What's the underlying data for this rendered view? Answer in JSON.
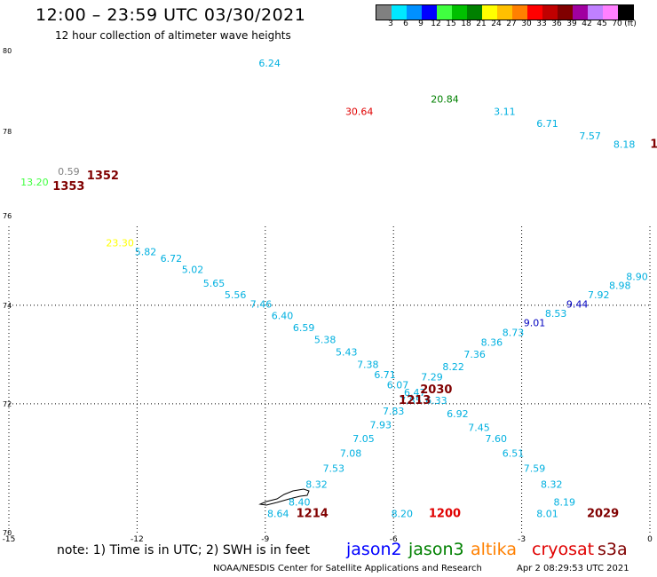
{
  "header": {
    "title": "12:00 – 23:59 UTC 03/30/2021",
    "subtitle": "12 hour collection of altimeter wave heights"
  },
  "colorbar": {
    "colors": [
      "#808080",
      "#00e8ff",
      "#0090ff",
      "#0000ff",
      "#40ff40",
      "#00c000",
      "#008000",
      "#ffff00",
      "#ffc000",
      "#ff8000",
      "#ff0000",
      "#c00000",
      "#800000",
      "#a000a0",
      "#c080ff",
      "#ff80ff",
      "#000000"
    ],
    "labels": [
      "3",
      "6",
      "9",
      "12",
      "15",
      "18",
      "21",
      "24",
      "27",
      "30",
      "33",
      "36",
      "39",
      "42",
      "45",
      "70",
      "(ft)"
    ]
  },
  "chart_data": {
    "type": "scatter",
    "xlim": [
      -15,
      0
    ],
    "ylim": [
      70,
      80
    ],
    "grid": true,
    "x_ticks": [
      "-15",
      "-12",
      "-9",
      "-6",
      "-3",
      "0"
    ],
    "y_ticks": [
      "70",
      "72",
      "74",
      "76",
      "78",
      "80"
    ],
    "points": [
      {
        "lon": -8.9,
        "lat": 79.6,
        "text": "6.24",
        "color": "#00b0e0"
      },
      {
        "lon": -4.8,
        "lat": 78.7,
        "text": "20.84",
        "color": "#008000"
      },
      {
        "lon": -6.8,
        "lat": 78.4,
        "text": "30.64",
        "color": "#e00000"
      },
      {
        "lon": -3.4,
        "lat": 78.4,
        "text": "3.11",
        "color": "#00b0e0"
      },
      {
        "lon": -2.4,
        "lat": 78.1,
        "text": "6.71",
        "color": "#00b0e0"
      },
      {
        "lon": -1.4,
        "lat": 77.8,
        "text": "7.57",
        "color": "#00b0e0"
      },
      {
        "lon": -0.6,
        "lat": 77.6,
        "text": "8.18",
        "color": "#00b0e0"
      },
      {
        "lon": -14.4,
        "lat": 76.7,
        "text": "13.20",
        "color": "#40ff40"
      },
      {
        "lon": -13.6,
        "lat": 76.95,
        "text": "0.59",
        "color": "#808080"
      },
      {
        "lon": -12.4,
        "lat": 75.3,
        "text": "23.30",
        "color": "#ffff00"
      },
      {
        "lon": -11.8,
        "lat": 75.1,
        "text": "5.82",
        "color": "#00b0e0"
      },
      {
        "lon": -11.2,
        "lat": 74.95,
        "text": "6.72",
        "color": "#00b0e0"
      },
      {
        "lon": -10.7,
        "lat": 74.7,
        "text": "5.02",
        "color": "#00b0e0"
      },
      {
        "lon": -10.2,
        "lat": 74.4,
        "text": "5.65",
        "color": "#00b0e0"
      },
      {
        "lon": -9.7,
        "lat": 74.15,
        "text": "5.56",
        "color": "#00b0e0"
      },
      {
        "lon": -9.1,
        "lat": 73.95,
        "text": "7.46",
        "color": "#00b0e0"
      },
      {
        "lon": -8.6,
        "lat": 73.7,
        "text": "6.40",
        "color": "#00b0e0"
      },
      {
        "lon": -8.1,
        "lat": 73.45,
        "text": "6.59",
        "color": "#00b0e0"
      },
      {
        "lon": -7.6,
        "lat": 73.2,
        "text": "5.38",
        "color": "#00b0e0"
      },
      {
        "lon": -7.1,
        "lat": 72.95,
        "text": "5.43",
        "color": "#00b0e0"
      },
      {
        "lon": -6.6,
        "lat": 72.7,
        "text": "7.38",
        "color": "#00b0e0"
      },
      {
        "lon": -6.2,
        "lat": 72.5,
        "text": "6.71",
        "color": "#00b0e0"
      },
      {
        "lon": -5.9,
        "lat": 72.3,
        "text": "6.07",
        "color": "#00b0e0"
      },
      {
        "lon": -5.5,
        "lat": 72.15,
        "text": "6.47",
        "color": "#00b0e0"
      },
      {
        "lon": -5.0,
        "lat": 72.0,
        "text": "6.33",
        "color": "#00b0e0"
      },
      {
        "lon": -4.5,
        "lat": 71.75,
        "text": "6.92",
        "color": "#00b0e0"
      },
      {
        "lon": -4.0,
        "lat": 71.5,
        "text": "7.45",
        "color": "#00b0e0"
      },
      {
        "lon": -3.6,
        "lat": 71.3,
        "text": "7.60",
        "color": "#00b0e0"
      },
      {
        "lon": -3.2,
        "lat": 71.05,
        "text": "6.51",
        "color": "#00b0e0"
      },
      {
        "lon": -2.7,
        "lat": 70.8,
        "text": "7.59",
        "color": "#00b0e0"
      },
      {
        "lon": -2.3,
        "lat": 70.55,
        "text": "8.32",
        "color": "#00b0e0"
      },
      {
        "lon": -2.0,
        "lat": 70.3,
        "text": "8.19",
        "color": "#00b0e0"
      },
      {
        "lon": -2.4,
        "lat": 70.15,
        "text": "8.01",
        "color": "#00b0e0"
      },
      {
        "lon": -8.7,
        "lat": 70.15,
        "text": "8.64",
        "color": "#00b0e0"
      },
      {
        "lon": -8.2,
        "lat": 70.3,
        "text": "8.40",
        "color": "#00b0e0"
      },
      {
        "lon": -7.8,
        "lat": 70.55,
        "text": "8.32",
        "color": "#00b0e0"
      },
      {
        "lon": -7.4,
        "lat": 70.8,
        "text": "7.53",
        "color": "#00b0e0"
      },
      {
        "lon": -7.0,
        "lat": 71.05,
        "text": "7.08",
        "color": "#00b0e0"
      },
      {
        "lon": -6.7,
        "lat": 71.3,
        "text": "7.05",
        "color": "#00b0e0"
      },
      {
        "lon": -6.3,
        "lat": 71.55,
        "text": "7.93",
        "color": "#00b0e0"
      },
      {
        "lon": -6.0,
        "lat": 71.8,
        "text": "7.83",
        "color": "#00b0e0"
      },
      {
        "lon": -5.6,
        "lat": 72.0,
        "text": "7.85",
        "color": "#00b0e0"
      },
      {
        "lon": -5.1,
        "lat": 72.45,
        "text": "7.29",
        "color": "#00b0e0"
      },
      {
        "lon": -4.6,
        "lat": 72.65,
        "text": "8.22",
        "color": "#00b0e0"
      },
      {
        "lon": -4.1,
        "lat": 72.9,
        "text": "7.36",
        "color": "#00b0e0"
      },
      {
        "lon": -3.7,
        "lat": 73.15,
        "text": "8.36",
        "color": "#00b0e0"
      },
      {
        "lon": -3.2,
        "lat": 73.35,
        "text": "8.73",
        "color": "#00b0e0"
      },
      {
        "lon": -2.7,
        "lat": 73.55,
        "text": "9.01",
        "color": "#0000c0"
      },
      {
        "lon": -2.2,
        "lat": 73.75,
        "text": "8.53",
        "color": "#00b0e0"
      },
      {
        "lon": -1.7,
        "lat": 73.95,
        "text": "9.44",
        "color": "#0000c0"
      },
      {
        "lon": -1.2,
        "lat": 74.15,
        "text": "7.92",
        "color": "#00b0e0"
      },
      {
        "lon": -0.7,
        "lat": 74.35,
        "text": "8.98",
        "color": "#00b0e0"
      },
      {
        "lon": -0.3,
        "lat": 74.55,
        "text": "8.90",
        "color": "#00b0e0"
      },
      {
        "lon": -5.8,
        "lat": 70.15,
        "text": "8.20",
        "color": "#00b0e0"
      }
    ],
    "time_labels": [
      {
        "lon": -12.8,
        "lat": 76.85,
        "text": "1352",
        "color": "#800000"
      },
      {
        "lon": -13.6,
        "lat": 76.6,
        "text": "1353",
        "color": "#800000"
      },
      {
        "lon": -5.0,
        "lat": 72.2,
        "text": "2030",
        "color": "#800000"
      },
      {
        "lon": -5.5,
        "lat": 72.0,
        "text": "1213",
        "color": "#800000"
      },
      {
        "lon": -7.9,
        "lat": 70.15,
        "text": "1214",
        "color": "#800000"
      },
      {
        "lon": -4.8,
        "lat": 70.15,
        "text": "1200",
        "color": "#e00000"
      },
      {
        "lon": -1.1,
        "lat": 70.15,
        "text": "2029",
        "color": "#800000"
      },
      {
        "lon": 0.1,
        "lat": 77.6,
        "text": "1",
        "color": "#800000"
      }
    ]
  },
  "footer": {
    "note": "note:  1) Time is in UTC; 2) SWH is in feet",
    "legend": [
      {
        "label": "jason2",
        "color": "#0000ff"
      },
      {
        "label": "jason3",
        "color": "#008000"
      },
      {
        "label": "altika",
        "color": "#ff8000"
      },
      {
        "label": "cryosat",
        "color": "#e00000"
      },
      {
        "label": "s3a",
        "color": "#800000"
      }
    ],
    "credit": "NOAA/NESDIS Center for Satellite Applications and Research",
    "date": "Apr  2 08:29:53 UTC 2021"
  }
}
